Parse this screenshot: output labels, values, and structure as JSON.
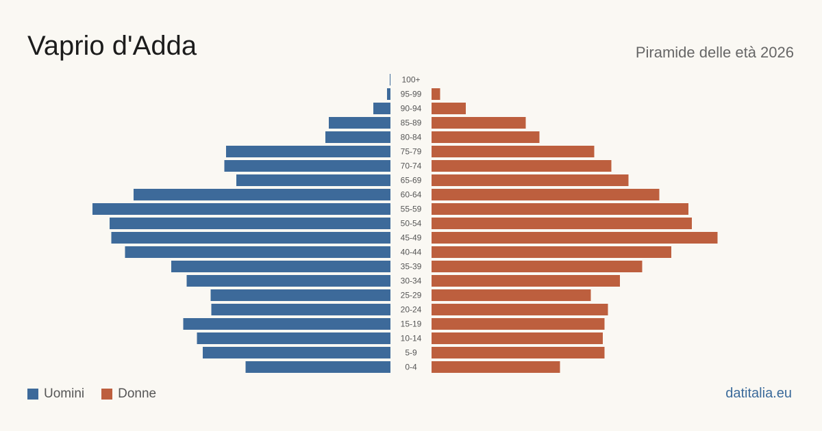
{
  "header": {
    "title": "Vaprio d'Adda",
    "subtitle": "Piramide delle età 2026"
  },
  "legend": {
    "men_label": "Uomini",
    "women_label": "Donne"
  },
  "footer": {
    "source": "datitalia.eu"
  },
  "colors": {
    "men": "#3d6a9a",
    "women": "#bd5f3e",
    "background": "#faf8f3"
  },
  "chart_data": {
    "type": "bar",
    "orientation": "horizontal-pyramid",
    "categories": [
      "100+",
      "95-99",
      "90-94",
      "85-89",
      "80-84",
      "75-79",
      "70-74",
      "65-69",
      "60-64",
      "55-59",
      "50-54",
      "45-49",
      "40-44",
      "35-39",
      "30-34",
      "25-29",
      "20-24",
      "15-19",
      "10-14",
      "5-9",
      "0-4"
    ],
    "series": [
      {
        "name": "Uomini",
        "values": [
          0.2,
          1,
          5,
          18,
          19,
          48,
          48.5,
          45,
          75,
          87,
          82,
          81.5,
          77.5,
          64,
          59.5,
          52.5,
          52.3,
          60.5,
          56.5,
          54.8,
          42.3
        ]
      },
      {
        "name": "Donne",
        "values": [
          0,
          2.5,
          10,
          27.5,
          31.5,
          47.5,
          52.5,
          57.5,
          66.5,
          75,
          76,
          83.5,
          70,
          61.5,
          55,
          46.5,
          51.5,
          50.5,
          50,
          50.5,
          37.5
        ]
      }
    ],
    "grid": false,
    "legend_position": "bottom-left"
  }
}
